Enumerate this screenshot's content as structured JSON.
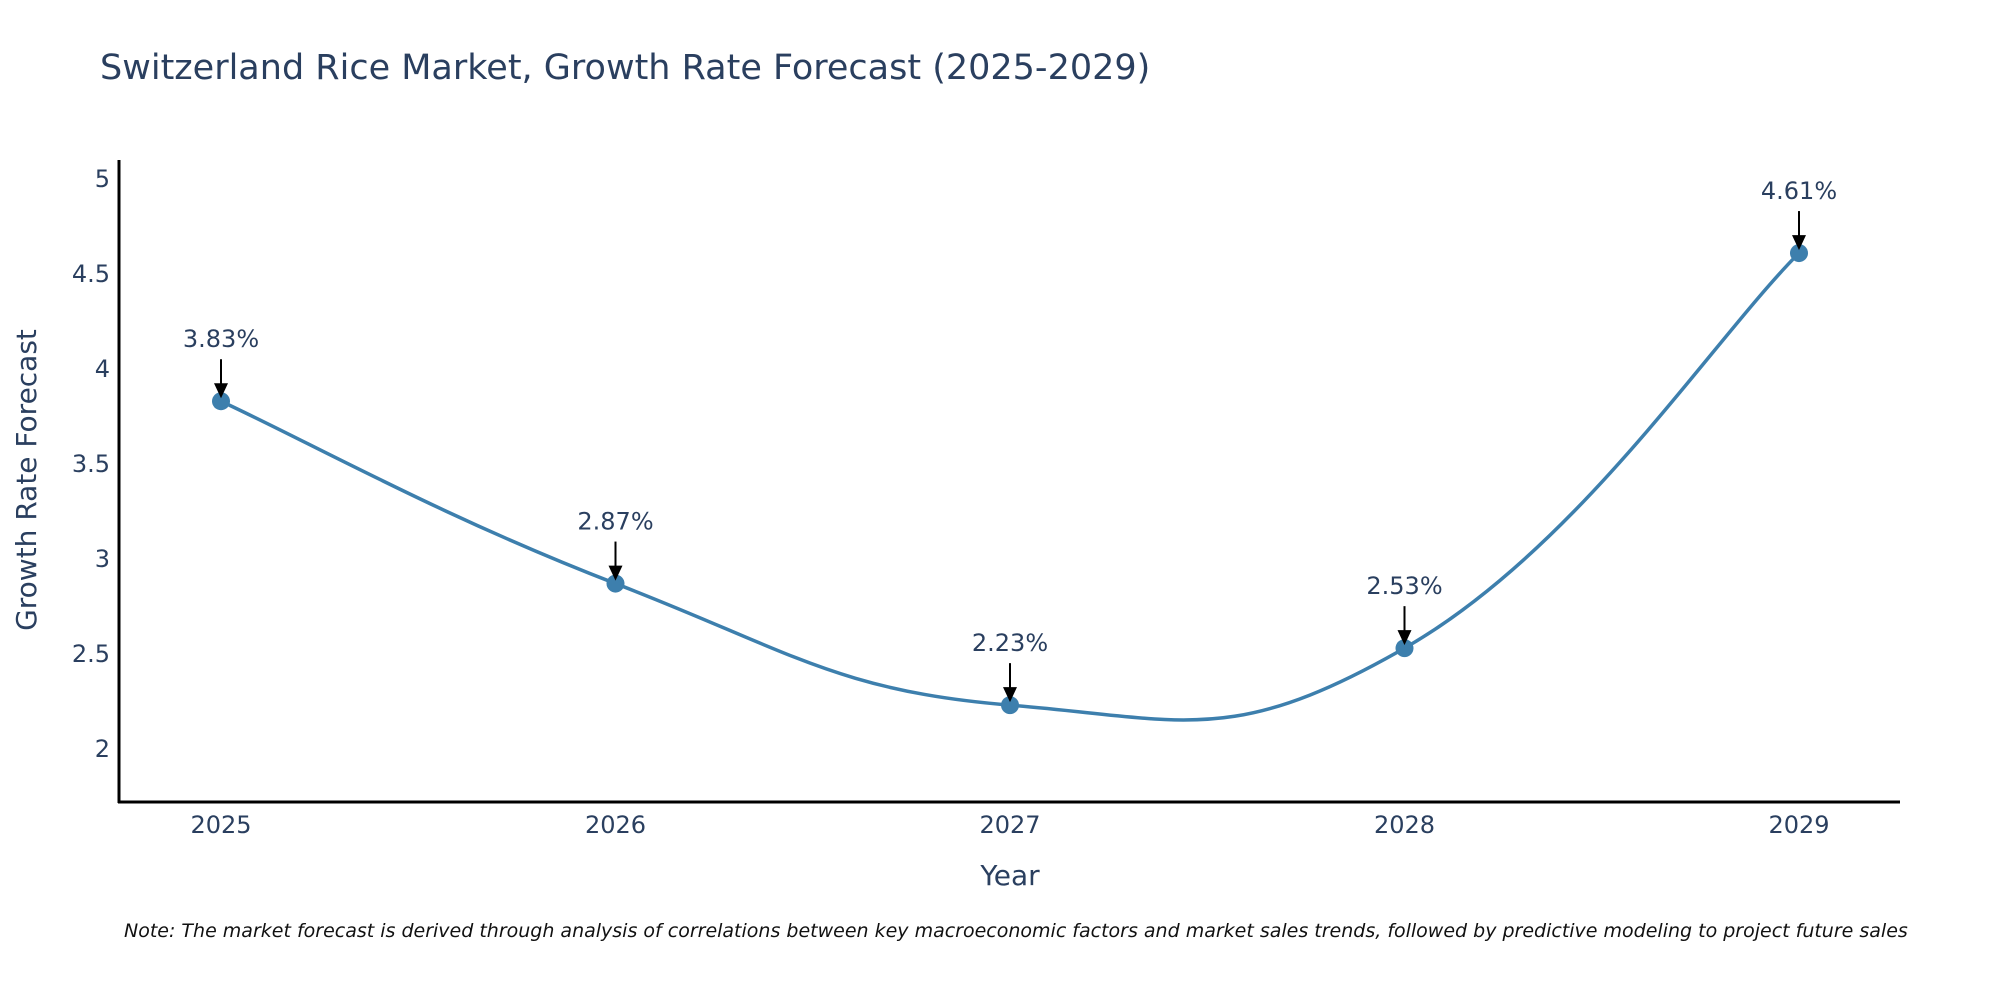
{
  "chart_data": {
    "type": "line",
    "title": "Switzerland Rice Market, Growth Rate Forecast (2025-2029)",
    "xlabel": "Year",
    "ylabel": "Growth Rate Forecast",
    "categories": [
      "2025",
      "2026",
      "2027",
      "2028",
      "2029"
    ],
    "values": [
      3.83,
      2.87,
      2.23,
      2.53,
      4.61
    ],
    "data_labels": [
      "3.83%",
      "2.87%",
      "2.23%",
      "2.53%",
      "4.61%"
    ],
    "yticks": [
      "2",
      "2.5",
      "3",
      "3.5",
      "4",
      "4.5",
      "5"
    ],
    "ylim": [
      1.72,
      5.1
    ],
    "line_shape": "spline",
    "grid": false,
    "colors": {
      "line": "#3d7fad",
      "marker": "#3d7fad",
      "arrow": "#000000",
      "axis": "#000000"
    }
  },
  "note": "Note: The market forecast is derived through analysis of correlations between key macroeconomic factors and market sales trends, followed by predictive modeling to project future sales"
}
